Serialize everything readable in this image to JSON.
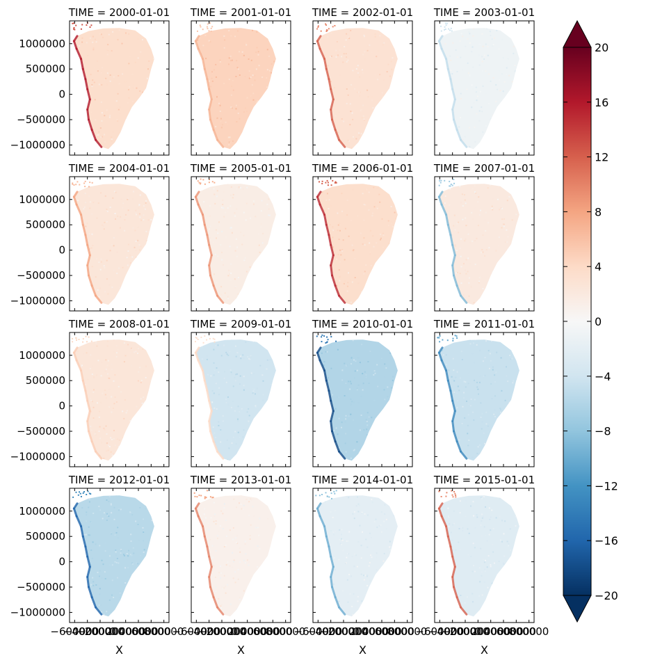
{
  "chart_data": {
    "type": "heatmap",
    "panel_titles": [
      "TIME = 2000-01-01",
      "TIME = 2001-01-01",
      "TIME = 2002-01-01",
      "TIME = 2003-01-01",
      "TIME = 2004-01-01",
      "TIME = 2005-01-01",
      "TIME = 2006-01-01",
      "TIME = 2007-01-01",
      "TIME = 2008-01-01",
      "TIME = 2009-01-01",
      "TIME = 2010-01-01",
      "TIME = 2011-01-01",
      "TIME = 2012-01-01",
      "TIME = 2013-01-01",
      "TIME = 2014-01-01",
      "TIME = 2015-01-01"
    ],
    "panel_mean_anomaly": [
      3.5,
      4.5,
      3.0,
      -1.0,
      2.5,
      1.5,
      3.5,
      2.0,
      2.5,
      -4.0,
      -6.0,
      -4.5,
      -5.5,
      1.0,
      -2.0,
      -2.5
    ],
    "panel_margin_anomaly": [
      16.0,
      7.0,
      12.0,
      -5.0,
      8.0,
      9.0,
      15.0,
      -9.0,
      5.0,
      4.0,
      -18.0,
      -13.0,
      -16.0,
      10.0,
      -10.0,
      12.0
    ],
    "xlabel": "X",
    "xtick_labels": [
      "−600000",
      "−400000",
      "−200000",
      "0",
      "200000",
      "400000",
      "600000",
      "800000"
    ],
    "xticks": [
      -600000,
      -400000,
      -200000,
      0,
      200000,
      400000,
      600000,
      800000
    ],
    "xlim": [
      -680000,
      880000
    ],
    "ytick_labels": [
      "1000000",
      "500000",
      "0",
      "−500000",
      "−1000000"
    ],
    "yticks": [
      1000000,
      500000,
      0,
      -500000,
      -1000000
    ],
    "ylim": [
      -1200000,
      1450000
    ],
    "colorbar": {
      "vmin": -20,
      "vmax": 20,
      "extend": "both",
      "cmap": "RdBu_r",
      "ticks": [
        20,
        16,
        12,
        8,
        4,
        0,
        -4,
        -8,
        -12,
        -16,
        -20
      ],
      "tick_labels": [
        "20",
        "16",
        "12",
        "8",
        "4",
        "0",
        "−4",
        "−8",
        "−12",
        "−16",
        "−20"
      ]
    }
  }
}
